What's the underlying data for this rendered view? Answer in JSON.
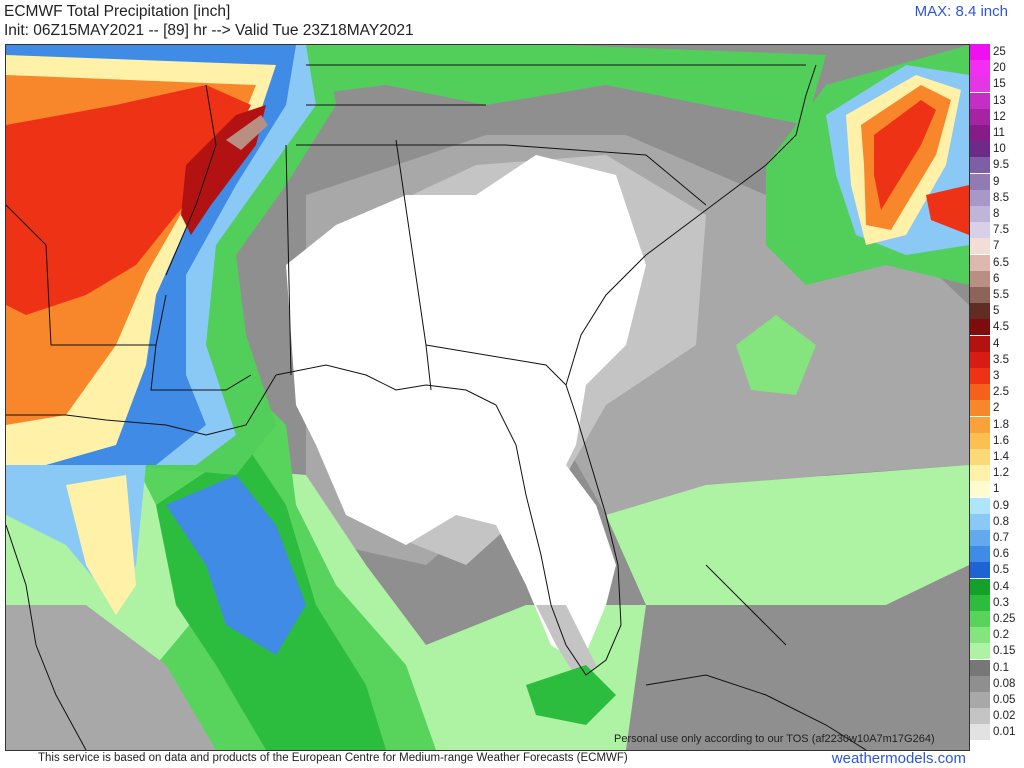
{
  "header": {
    "title": "ECMWF Total Precipitation [inch]",
    "subtitle": "Init: 06Z15MAY2021 -- [89] hr --> Valid Tue 23Z18MAY2021",
    "max": "MAX: 8.4 inch"
  },
  "colors": {
    "white": "#ffffff",
    "gray_light": "#c8c8c8",
    "gray_mid": "#a6a6a6",
    "gray_dark": "#8c8c8c",
    "green_light": "#9ef28f",
    "green_mid": "#52cf5a",
    "green_dark": "#20a032",
    "blue_light": "#8ec8f5",
    "blue_mid": "#3d8fe6",
    "blue_dark": "#1f5fd6",
    "yellow": "#fff7b0",
    "orange": "#f7a540",
    "red": "#e8401c",
    "dark_red": "#b01414"
  },
  "legend": [
    {
      "label": "25",
      "color": "#f00ff0"
    },
    {
      "label": "20",
      "color": "#f22ef2"
    },
    {
      "label": "15",
      "color": "#e436e4"
    },
    {
      "label": "13",
      "color": "#c42ec4"
    },
    {
      "label": "12",
      "color": "#a424a4"
    },
    {
      "label": "11",
      "color": "#861c86"
    },
    {
      "label": "10",
      "color": "#6d2a86"
    },
    {
      "label": "9.5",
      "color": "#7e5fa5"
    },
    {
      "label": "9",
      "color": "#927ab5"
    },
    {
      "label": "8.5",
      "color": "#a898c8"
    },
    {
      "label": "8",
      "color": "#c0b4d8"
    },
    {
      "label": "7.5",
      "color": "#d8d0e8"
    },
    {
      "label": "7",
      "color": "#f3ddd6"
    },
    {
      "label": "6.5",
      "color": "#dcb8ae"
    },
    {
      "label": "6",
      "color": "#b98f84"
    },
    {
      "label": "5.5",
      "color": "#8e6458"
    },
    {
      "label": "5",
      "color": "#5f2d24"
    },
    {
      "label": "4.5",
      "color": "#7d0d0d"
    },
    {
      "label": "4",
      "color": "#b31212"
    },
    {
      "label": "3.5",
      "color": "#d81c14"
    },
    {
      "label": "3",
      "color": "#ee3216"
    },
    {
      "label": "2.5",
      "color": "#f5611c"
    },
    {
      "label": "2",
      "color": "#f8862a"
    },
    {
      "label": "1.8",
      "color": "#faa23a"
    },
    {
      "label": "1.6",
      "color": "#fbbf52"
    },
    {
      "label": "1.4",
      "color": "#fcd978"
    },
    {
      "label": "1.2",
      "color": "#fff1a8"
    },
    {
      "label": "1",
      "color": "#fffbd0"
    },
    {
      "label": "0.9",
      "color": "#b0e4fb"
    },
    {
      "label": "0.8",
      "color": "#8ac8f5"
    },
    {
      "label": "0.7",
      "color": "#62a9ee"
    },
    {
      "label": "0.6",
      "color": "#3f8be6"
    },
    {
      "label": "0.5",
      "color": "#1f62d4"
    },
    {
      "label": "0.4",
      "color": "#15a02c"
    },
    {
      "label": "0.3",
      "color": "#2cbd3e"
    },
    {
      "label": "0.25",
      "color": "#58d45c"
    },
    {
      "label": "0.2",
      "color": "#84e47e"
    },
    {
      "label": "0.15",
      "color": "#aef2a4"
    },
    {
      "label": "0.1",
      "color": "#777777"
    },
    {
      "label": "0.08",
      "color": "#8f8f8f"
    },
    {
      "label": "0.05",
      "color": "#a8a8a8"
    },
    {
      "label": "0.02",
      "color": "#c4c4c4"
    },
    {
      "label": "0.01",
      "color": "#e2e2e2"
    }
  ],
  "footer": {
    "disclaimer": "This service is based on data and products of the European Centre for Medium-range Weather Forecasts (ECMWF)",
    "tos": "Personal use only according to our TOS (af2230w10A7m17G264)",
    "brand": "weathermodels.com"
  }
}
